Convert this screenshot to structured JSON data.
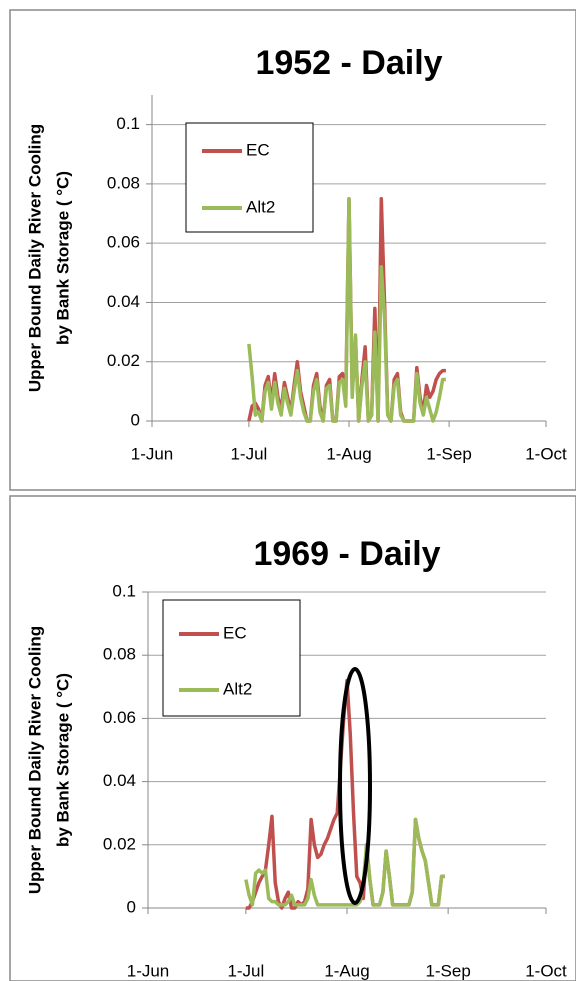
{
  "chart_data": [
    {
      "type": "line",
      "title": "1952 - Daily",
      "ylabel": [
        "Upper Bound Daily River Cooling",
        "by Bank Storage ( °C)"
      ],
      "xlim": [
        "1-Jun",
        "1-Oct"
      ],
      "xticks": [
        "1-Jun",
        "1-Jul",
        "1-Aug",
        "1-Sep",
        "1-Oct"
      ],
      "ylim": [
        0,
        0.11
      ],
      "yticks": [
        0,
        0.02,
        0.04,
        0.06,
        0.08,
        0.1
      ],
      "grid": true,
      "x": [
        "1-Jul",
        "2-Jul",
        "3-Jul",
        "4-Jul",
        "5-Jul",
        "6-Jul",
        "7-Jul",
        "8-Jul",
        "9-Jul",
        "10-Jul",
        "11-Jul",
        "12-Jul",
        "13-Jul",
        "14-Jul",
        "15-Jul",
        "16-Jul",
        "17-Jul",
        "18-Jul",
        "19-Jul",
        "20-Jul",
        "21-Jul",
        "22-Jul",
        "23-Jul",
        "24-Jul",
        "25-Jul",
        "26-Jul",
        "27-Jul",
        "28-Jul",
        "29-Jul",
        "30-Jul",
        "31-Jul",
        "1-Aug",
        "2-Aug",
        "3-Aug",
        "4-Aug",
        "5-Aug",
        "6-Aug",
        "7-Aug",
        "8-Aug",
        "9-Aug",
        "10-Aug",
        "11-Aug",
        "12-Aug",
        "13-Aug",
        "14-Aug",
        "15-Aug",
        "16-Aug",
        "17-Aug",
        "18-Aug",
        "19-Aug",
        "20-Aug",
        "21-Aug",
        "22-Aug",
        "23-Aug",
        "24-Aug",
        "25-Aug",
        "26-Aug",
        "27-Aug",
        "28-Aug",
        "29-Aug",
        "30-Aug",
        "31-Aug"
      ],
      "series": [
        {
          "name": "EC",
          "color": "#c0504d",
          "values": [
            0,
            0.005,
            0.006,
            0.004,
            0,
            0.012,
            0.015,
            0.006,
            0.016,
            0.008,
            0.004,
            0.013,
            0.008,
            0.003,
            0.012,
            0.02,
            0.01,
            0.005,
            0,
            0,
            0.012,
            0.016,
            0.005,
            0,
            0.012,
            0.014,
            0,
            0,
            0.015,
            0.016,
            0.008,
            0.075,
            0.01,
            0.028,
            0,
            0.014,
            0.025,
            0,
            0.002,
            0.038,
            0,
            0.075,
            0.04,
            0.002,
            0,
            0.014,
            0.016,
            0.003,
            0,
            0,
            0,
            0,
            0.018,
            0.008,
            0.003,
            0.012,
            0.008,
            0.01,
            0.014,
            0.016,
            0.017,
            0.017
          ]
        },
        {
          "name": "Alt2",
          "color": "#9bbb59",
          "values": [
            0.026,
            0.015,
            0.002,
            0.003,
            0,
            0.01,
            0.013,
            0.004,
            0.013,
            0.006,
            0.002,
            0.011,
            0.006,
            0.002,
            0.01,
            0.017,
            0.008,
            0.003,
            0,
            0,
            0.01,
            0.014,
            0.003,
            0,
            0.011,
            0.012,
            0,
            0,
            0.013,
            0.014,
            0.005,
            0.075,
            0.008,
            0.029,
            0,
            0.012,
            0.02,
            0,
            0.002,
            0.03,
            0,
            0.052,
            0.035,
            0.002,
            0,
            0.012,
            0.014,
            0.002,
            0,
            0,
            0,
            0,
            0.016,
            0.006,
            0.002,
            0.008,
            0.004,
            0,
            0.003,
            0.008,
            0.014,
            0.014
          ]
        }
      ]
    },
    {
      "type": "line",
      "title": "1969 - Daily",
      "ylabel": [
        "Upper Bound Daily River Cooling",
        "by Bank Storage ( °C)"
      ],
      "xlim": [
        "1-Jun",
        "1-Oct"
      ],
      "xticks": [
        "1-Jun",
        "1-Jul",
        "1-Aug",
        "1-Sep",
        "1-Oct"
      ],
      "ylim": [
        0,
        0.1
      ],
      "yticks": [
        0,
        0.02,
        0.04,
        0.06,
        0.08,
        0.1
      ],
      "grid": true,
      "x": [
        "1-Jul",
        "2-Jul",
        "3-Jul",
        "4-Jul",
        "5-Jul",
        "6-Jul",
        "7-Jul",
        "8-Jul",
        "9-Jul",
        "10-Jul",
        "11-Jul",
        "12-Jul",
        "13-Jul",
        "14-Jul",
        "15-Jul",
        "16-Jul",
        "17-Jul",
        "18-Jul",
        "19-Jul",
        "20-Jul",
        "21-Jul",
        "22-Jul",
        "23-Jul",
        "24-Jul",
        "25-Jul",
        "26-Jul",
        "27-Jul",
        "28-Jul",
        "29-Jul",
        "30-Jul",
        "31-Jul",
        "1-Aug",
        "2-Aug",
        "3-Aug",
        "4-Aug",
        "5-Aug",
        "6-Aug",
        "7-Aug",
        "8-Aug",
        "9-Aug",
        "10-Aug",
        "11-Aug",
        "12-Aug",
        "13-Aug",
        "14-Aug",
        "15-Aug",
        "16-Aug",
        "17-Aug",
        "18-Aug",
        "19-Aug",
        "20-Aug",
        "21-Aug",
        "22-Aug",
        "23-Aug",
        "24-Aug",
        "25-Aug",
        "26-Aug",
        "27-Aug",
        "28-Aug",
        "29-Aug",
        "30-Aug",
        "31-Aug"
      ],
      "series": [
        {
          "name": "EC",
          "color": "#c0504d",
          "values": [
            0,
            0,
            0.002,
            0.005,
            0.008,
            0.01,
            0.012,
            0.02,
            0.029,
            0.008,
            0.002,
            0,
            0.003,
            0.005,
            0,
            0,
            0.002,
            0.001,
            0.002,
            0.006,
            0.028,
            0.02,
            0.016,
            0.017,
            0.02,
            0.022,
            0.025,
            0.028,
            0.03,
            0.045,
            0.06,
            0.072,
            0.055,
            0.03,
            0.01,
            0.008,
            0.003,
            0.02,
            0.009,
            0.001,
            0.001,
            0.001,
            0.005,
            0.018,
            0.01,
            0.001,
            0.001,
            0.001,
            0.001,
            0.001,
            0.001,
            0.005,
            0.028,
            0.022,
            0.018,
            0.015,
            0.008,
            0.001,
            0.001,
            0.001,
            0.01,
            0.01
          ]
        },
        {
          "name": "Alt2",
          "color": "#9bbb59",
          "values": [
            0.009,
            0.004,
            0.001,
            0.011,
            0.012,
            0.011,
            0.012,
            0.003,
            0.002,
            0.002,
            0.001,
            0.001,
            0.001,
            0.002,
            0.004,
            0.001,
            0.001,
            0.001,
            0.001,
            0.003,
            0.009,
            0.004,
            0.001,
            0.001,
            0.001,
            0.001,
            0.001,
            0.001,
            0.001,
            0.001,
            0.001,
            0.001,
            0.001,
            0.001,
            0.001,
            0.002,
            0.008,
            0.02,
            0.009,
            0.001,
            0.001,
            0.001,
            0.005,
            0.018,
            0.01,
            0.001,
            0.001,
            0.001,
            0.001,
            0.001,
            0.001,
            0.005,
            0.028,
            0.022,
            0.018,
            0.015,
            0.008,
            0.001,
            0.001,
            0.001,
            0.01,
            0.01
          ]
        }
      ]
    }
  ]
}
